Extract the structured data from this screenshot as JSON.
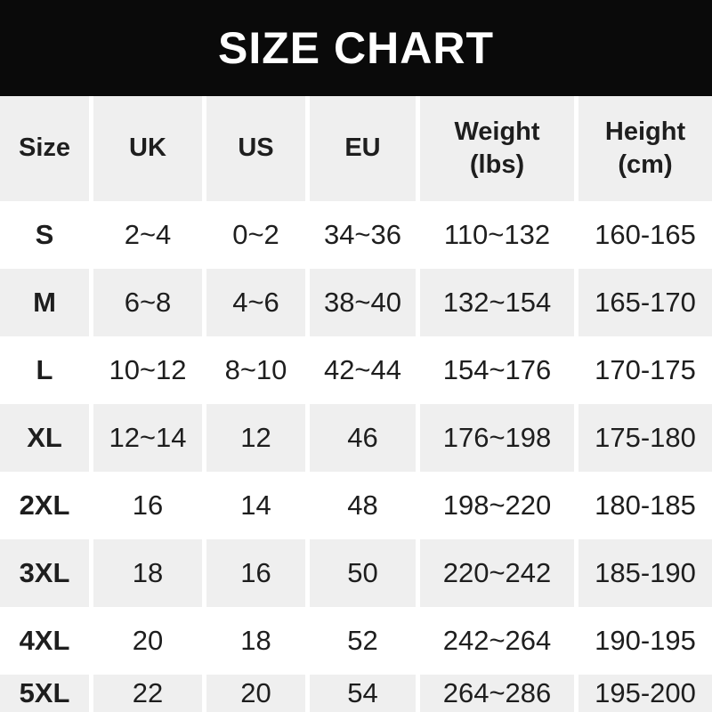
{
  "title": "SIZE CHART",
  "colors": {
    "banner_bg": "#0a0a0a",
    "title_text": "#ffffff",
    "stripe_gray": "#efefef",
    "row_white": "#ffffff",
    "text": "#1e1e1e"
  },
  "table": {
    "headers": {
      "size": {
        "line1": "Size"
      },
      "uk": {
        "line1": "UK"
      },
      "us": {
        "line1": "US"
      },
      "eu": {
        "line1": "EU"
      },
      "weight": {
        "line1": "Weight",
        "line2": "(lbs)"
      },
      "height": {
        "line1": "Height",
        "line2": "(cm)"
      }
    },
    "rows": [
      {
        "size": "S",
        "uk": "2~4",
        "us": "0~2",
        "eu": "34~36",
        "weight": "110~132",
        "height": "160-165"
      },
      {
        "size": "M",
        "uk": "6~8",
        "us": "4~6",
        "eu": "38~40",
        "weight": "132~154",
        "height": "165-170"
      },
      {
        "size": "L",
        "uk": "10~12",
        "us": "8~10",
        "eu": "42~44",
        "weight": "154~176",
        "height": "170-175"
      },
      {
        "size": "XL",
        "uk": "12~14",
        "us": "12",
        "eu": "46",
        "weight": "176~198",
        "height": "175-180"
      },
      {
        "size": "2XL",
        "uk": "16",
        "us": "14",
        "eu": "48",
        "weight": "198~220",
        "height": "180-185"
      },
      {
        "size": "3XL",
        "uk": "18",
        "us": "16",
        "eu": "50",
        "weight": "220~242",
        "height": "185-190"
      },
      {
        "size": "4XL",
        "uk": "20",
        "us": "18",
        "eu": "52",
        "weight": "242~264",
        "height": "190-195"
      },
      {
        "size": "5XL",
        "uk": "22",
        "us": "20",
        "eu": "54",
        "weight": "264~286",
        "height": "195-200"
      }
    ]
  },
  "chart_data": {
    "type": "table",
    "title": "SIZE CHART",
    "columns": [
      "Size",
      "UK",
      "US",
      "EU",
      "Weight (lbs)",
      "Height (cm)"
    ],
    "rows": [
      [
        "S",
        "2~4",
        "0~2",
        "34~36",
        "110~132",
        "160-165"
      ],
      [
        "M",
        "6~8",
        "4~6",
        "38~40",
        "132~154",
        "165-170"
      ],
      [
        "L",
        "10~12",
        "8~10",
        "42~44",
        "154~176",
        "170-175"
      ],
      [
        "XL",
        "12~14",
        "12",
        "46",
        "176~198",
        "175-180"
      ],
      [
        "2XL",
        "16",
        "14",
        "48",
        "198~220",
        "180-185"
      ],
      [
        "3XL",
        "18",
        "16",
        "50",
        "220~242",
        "185-190"
      ],
      [
        "4XL",
        "20",
        "18",
        "52",
        "242~264",
        "190-195"
      ],
      [
        "5XL",
        "22",
        "20",
        "54",
        "264~286",
        "195-200"
      ]
    ],
    "layout": {
      "striped_rows": true,
      "header_background": "#efefef",
      "stripe_background": "#efefef"
    }
  }
}
